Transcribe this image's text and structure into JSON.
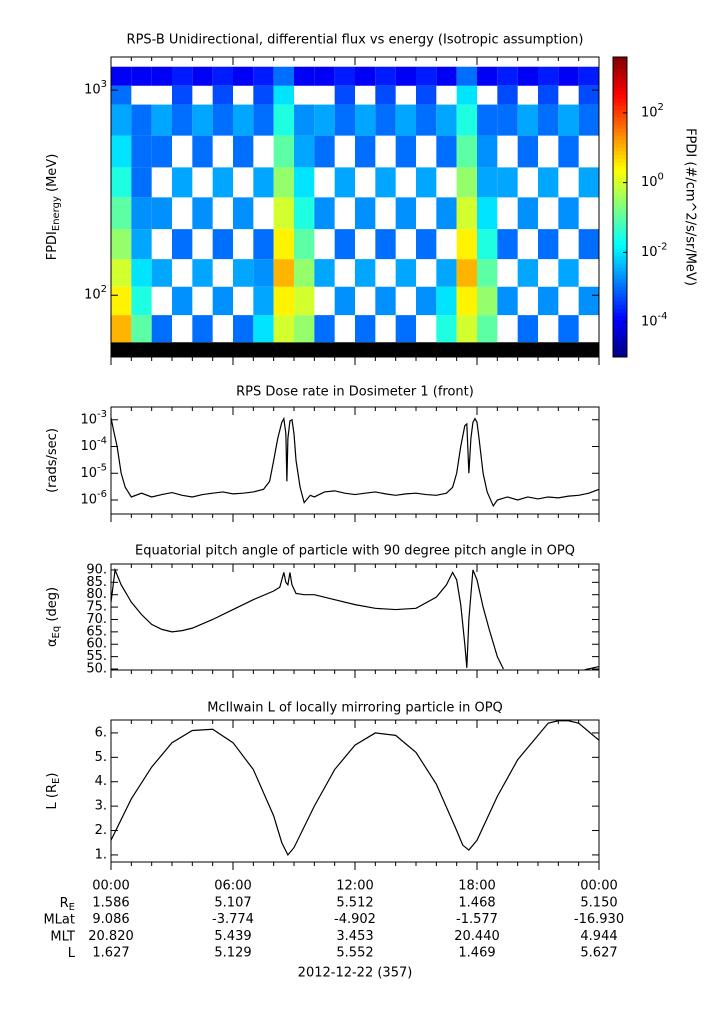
{
  "time_axis": {
    "xlim": [
      0,
      24
    ],
    "xticks": [
      {
        "value": 0,
        "label": "00:00"
      },
      {
        "value": 6,
        "label": "06:00"
      },
      {
        "value": 12,
        "label": "12:00"
      },
      {
        "value": 18,
        "label": "18:00"
      },
      {
        "value": 24,
        "label": "00:00"
      }
    ],
    "minor_xticks": [
      1,
      2,
      3,
      4,
      5,
      7,
      8,
      9,
      10,
      11,
      13,
      14,
      15,
      16,
      17,
      19,
      20,
      21,
      22,
      23
    ]
  },
  "ephemeris": {
    "rows": [
      {
        "name": "R",
        "sub": "E",
        "values": [
          "1.586",
          "5.107",
          "5.512",
          "1.468",
          "5.150"
        ]
      },
      {
        "name": "MLat",
        "values": [
          "9.086",
          "-3.774",
          "-4.902",
          "-1.577",
          "-16.930"
        ]
      },
      {
        "name": "MLT",
        "values": [
          "20.820",
          "5.439",
          "3.453",
          "20.440",
          "4.944"
        ]
      },
      {
        "name": "L",
        "values": [
          "1.627",
          "5.129",
          "5.552",
          "1.469",
          "5.627"
        ]
      }
    ]
  },
  "date": "2012-12-22 (357)",
  "chart_data": [
    {
      "type": "heatmap",
      "title": "RPS-B  Unidirectional, differential flux vs energy (Isotropic assumption)",
      "ylabel": {
        "main": "FPDI",
        "sub": "Energy",
        "rest": " (MeV)"
      },
      "log_y": true,
      "ylim": [
        50,
        1450
      ],
      "yticks": [
        {
          "value": 100,
          "label": "10^2"
        },
        {
          "value": 1000,
          "label": "10^3"
        }
      ],
      "x_edges": [
        0,
        1,
        2,
        3,
        4,
        5,
        6,
        7,
        8,
        9,
        10,
        11,
        12,
        13,
        14,
        15,
        16,
        17,
        18,
        19,
        20,
        21,
        22,
        23,
        24
      ],
      "y_edges": [
        59,
        80,
        110,
        150,
        210,
        300,
        420,
        600,
        850,
        1050,
        1300
      ],
      "z": [
        [
          10,
          3,
          1,
          0.3,
          0.1,
          0.03,
          0.01,
          0.003,
          0.001,
          0.0001
        ],
        [
          0.1,
          0.03,
          0.01,
          0.003,
          0.002,
          0.001,
          0.001,
          0.001,
          null,
          0.0001
        ],
        [
          0.001,
          null,
          0.003,
          null,
          0.002,
          null,
          0.001,
          0.003,
          null,
          0.0001
        ],
        [
          null,
          0.002,
          null,
          0.001,
          null,
          0.003,
          null,
          0.001,
          0.0005,
          0.0002
        ],
        [
          0.001,
          null,
          0.003,
          null,
          0.002,
          null,
          0.001,
          0.003,
          null,
          0.0001
        ],
        [
          null,
          0.002,
          null,
          0.001,
          null,
          0.003,
          null,
          0.001,
          0.0005,
          0.0002
        ],
        [
          0.001,
          null,
          0.003,
          null,
          0.002,
          null,
          0.001,
          0.003,
          null,
          0.0001
        ],
        [
          0.01,
          0.003,
          0.002,
          0.001,
          null,
          0.003,
          null,
          0.001,
          0.0005,
          0.0002
        ],
        [
          1,
          3,
          10,
          3,
          1,
          0.3,
          0.1,
          0.03,
          0.01,
          0.001
        ],
        [
          0.3,
          1,
          0.3,
          0.1,
          0.03,
          0.01,
          0.003,
          0.002,
          null,
          0.0001
        ],
        [
          0.001,
          null,
          0.003,
          null,
          0.002,
          null,
          0.001,
          0.003,
          null,
          0.0001
        ],
        [
          null,
          0.002,
          null,
          0.001,
          null,
          0.003,
          null,
          0.001,
          0.0005,
          0.0002
        ],
        [
          0.001,
          null,
          0.003,
          null,
          0.002,
          null,
          0.001,
          0.003,
          null,
          0.0001
        ],
        [
          null,
          0.002,
          null,
          0.001,
          null,
          0.003,
          null,
          0.001,
          0.0005,
          0.0002
        ],
        [
          0.001,
          null,
          0.003,
          null,
          0.002,
          null,
          0.001,
          0.003,
          null,
          0.0001
        ],
        [
          null,
          0.002,
          null,
          0.001,
          null,
          0.003,
          null,
          0.001,
          0.0005,
          0.0002
        ],
        [
          0.03,
          0.01,
          0.003,
          null,
          0.002,
          null,
          0.001,
          0.003,
          null,
          0.0001
        ],
        [
          1,
          3,
          10,
          3,
          1,
          0.3,
          0.1,
          0.03,
          0.01,
          0.001
        ],
        [
          0.1,
          0.3,
          0.1,
          0.03,
          0.01,
          0.003,
          0.002,
          0.001,
          null,
          0.0001
        ],
        [
          null,
          0.002,
          null,
          0.001,
          null,
          0.003,
          null,
          0.001,
          0.0005,
          0.0002
        ],
        [
          0.001,
          null,
          0.003,
          null,
          0.002,
          null,
          0.001,
          0.003,
          null,
          0.0001
        ],
        [
          null,
          0.002,
          null,
          0.001,
          null,
          0.003,
          null,
          0.001,
          0.0005,
          0.0002
        ],
        [
          0.001,
          null,
          0.003,
          null,
          0.002,
          null,
          0.001,
          0.003,
          null,
          0.0001
        ],
        [
          null,
          0.002,
          null,
          0.001,
          null,
          0.003,
          null,
          0.001,
          0.0005,
          0.0002
        ]
      ],
      "clim": [
        1e-05,
        4000
      ],
      "log_c": true,
      "colorbar_label": "FPDI (#/cm^2/s/sr/MeV)",
      "colorbar_ticks": [
        {
          "value": 0.0001,
          "label": "10^-4"
        },
        {
          "value": 0.01,
          "label": "10^-2"
        },
        {
          "value": 1,
          "label": "10^0"
        },
        {
          "value": 100,
          "label": "10^2"
        }
      ]
    },
    {
      "type": "line",
      "title": "RPS  Dose rate in Dosimeter 1 (front)",
      "ylabel": {
        "main": "(rads/sec)"
      },
      "log_y": true,
      "ylim": [
        3e-07,
        0.003
      ],
      "color": "#000000",
      "yticks": [
        {
          "value": 0.001,
          "label": "10^-3"
        },
        {
          "value": 0.0001,
          "label": "10^-4"
        },
        {
          "value": 1e-05,
          "label": "10^-5"
        },
        {
          "value": 1e-06,
          "label": "10^-6"
        }
      ],
      "x": [
        0,
        0.1,
        0.3,
        0.5,
        0.7,
        1,
        1.5,
        2,
        2.5,
        3,
        3.5,
        4,
        4.5,
        5,
        5.5,
        6,
        6.5,
        7,
        7.5,
        7.8,
        8.0,
        8.2,
        8.4,
        8.5,
        8.6,
        8.65,
        8.7,
        8.8,
        8.9,
        9.0,
        9.1,
        9.3,
        9.5,
        9.8,
        10,
        10.5,
        11,
        11.5,
        12,
        12.5,
        13,
        13.5,
        14,
        14.5,
        15,
        15.5,
        16,
        16.5,
        16.8,
        17.0,
        17.2,
        17.4,
        17.5,
        17.6,
        17.7,
        17.8,
        17.9,
        18.0,
        18.1,
        18.3,
        18.5,
        18.8,
        19,
        19.5,
        20,
        20.5,
        21,
        21.5,
        22,
        22.5,
        23,
        23.5,
        24
      ],
      "values": [
        0.0012,
        0.0005,
        0.0001,
        1e-05,
        3e-06,
        1.3e-06,
        1.8e-06,
        1.3e-06,
        1.6e-06,
        1.9e-06,
        1.5e-06,
        1.3e-06,
        1.6e-06,
        1.8e-06,
        2e-06,
        1.7e-06,
        1.8e-06,
        2e-06,
        2.5e-06,
        5e-06,
        3e-05,
        0.0002,
        0.0008,
        0.0011,
        0.0003,
        5e-06,
        0.0002,
        0.0009,
        0.001,
        0.0003,
        3e-05,
        3e-06,
        8e-07,
        1.5e-06,
        1.3e-06,
        2e-06,
        2.2e-06,
        1.8e-06,
        1.6e-06,
        1.8e-06,
        2e-06,
        1.7e-06,
        1.5e-06,
        1.7e-06,
        1.8e-06,
        1.6e-06,
        1.5e-06,
        1.8e-06,
        3e-06,
        1e-05,
        0.0001,
        0.0006,
        0.0007,
        1e-05,
        0.0002,
        0.0008,
        0.0011,
        0.0008,
        0.0002,
        1e-05,
        2e-06,
        6e-07,
        1e-06,
        1.3e-06,
        1e-06,
        1.3e-06,
        1.1e-06,
        1.3e-06,
        1.2e-06,
        1.4e-06,
        1.5e-06,
        1.8e-06,
        2.5e-06
      ]
    },
    {
      "type": "line",
      "title": "Equatorial pitch angle of particle with 90 degree pitch angle in OPQ",
      "ylabel": {
        "main": "α",
        "sub": "Eq",
        "rest": " (deg)"
      },
      "log_y": false,
      "ylim": [
        49.6,
        92.4
      ],
      "color": "#000000",
      "yticks": [
        {
          "value": 90,
          "label": "90."
        },
        {
          "value": 85,
          "label": "85."
        },
        {
          "value": 80,
          "label": "80."
        },
        {
          "value": 75,
          "label": "75."
        },
        {
          "value": 70,
          "label": "70."
        },
        {
          "value": 65,
          "label": "65."
        },
        {
          "value": 60,
          "label": "60."
        },
        {
          "value": 55,
          "label": "55."
        },
        {
          "value": 50,
          "label": "50."
        }
      ],
      "x": [
        0,
        0.2,
        0.5,
        1,
        1.5,
        2,
        2.5,
        3,
        3.5,
        4,
        5,
        6,
        7,
        8,
        8.3,
        8.5,
        8.6,
        8.7,
        8.8,
        8.9,
        9.1,
        9.5,
        10,
        11,
        12,
        13,
        14,
        15,
        16,
        16.5,
        16.8,
        17.0,
        17.2,
        17.4,
        17.5,
        17.6,
        17.8,
        18.0,
        18.3,
        18.6,
        19.0,
        19.3,
        19.4,
        23.3,
        24
      ],
      "values": [
        77,
        90,
        84,
        77,
        72,
        68,
        66,
        65,
        65.5,
        66.5,
        70,
        74,
        78,
        81.5,
        83,
        89,
        85,
        84,
        89,
        84,
        80.5,
        80,
        80,
        78,
        76,
        74.5,
        74,
        74.5,
        79,
        84,
        89,
        86,
        76,
        60,
        50.5,
        70,
        90,
        86,
        75,
        66,
        55,
        50,
        null,
        49.7,
        51
      ]
    },
    {
      "type": "line",
      "title": "McIlwain L of locally mirroring particle in OPQ",
      "ylabel": {
        "main": "L (R",
        "sub": "E",
        "rest": ")"
      },
      "log_y": false,
      "ylim": [
        0.71,
        6.53
      ],
      "color": "#000000",
      "yticks": [
        {
          "value": 6,
          "label": "6."
        },
        {
          "value": 5,
          "label": "5."
        },
        {
          "value": 4,
          "label": "4."
        },
        {
          "value": 3,
          "label": "3."
        },
        {
          "value": 2,
          "label": "2."
        },
        {
          "value": 1,
          "label": "1."
        }
      ],
      "x": [
        0,
        1,
        2,
        3,
        4,
        5,
        6,
        7,
        8,
        8.4,
        8.7,
        9,
        10,
        11,
        12,
        13,
        14,
        15,
        16,
        17,
        17.3,
        17.6,
        18,
        19,
        20,
        21,
        21.5,
        22,
        22.5,
        23,
        24
      ],
      "values": [
        1.6,
        3.3,
        4.6,
        5.6,
        6.1,
        6.15,
        5.6,
        4.5,
        2.6,
        1.5,
        1.0,
        1.3,
        3.0,
        4.5,
        5.5,
        6.0,
        5.9,
        5.2,
        3.9,
        2.0,
        1.4,
        1.2,
        1.6,
        3.4,
        4.9,
        5.9,
        6.4,
        6.5,
        6.5,
        6.4,
        5.7
      ]
    }
  ]
}
